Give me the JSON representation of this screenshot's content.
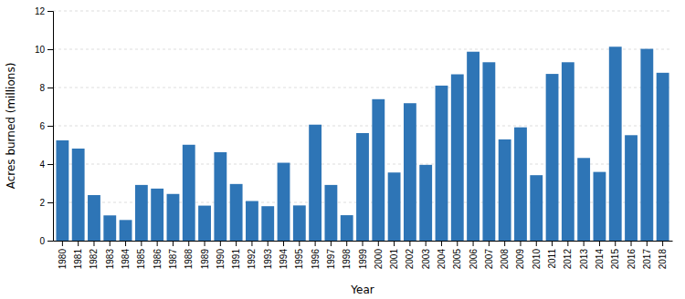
{
  "chart_data": {
    "type": "bar",
    "categories": [
      "1980",
      "1981",
      "1982",
      "1983",
      "1984",
      "1985",
      "1986",
      "1987",
      "1988",
      "1989",
      "1990",
      "1991",
      "1992",
      "1993",
      "1994",
      "1995",
      "1996",
      "1997",
      "1998",
      "1999",
      "2000",
      "2001",
      "2002",
      "2003",
      "2004",
      "2005",
      "2006",
      "2007",
      "2008",
      "2009",
      "2010",
      "2011",
      "2012",
      "2013",
      "2014",
      "2015",
      "2016",
      "2017",
      "2018"
    ],
    "values": [
      5.24,
      4.81,
      2.38,
      1.32,
      1.08,
      2.91,
      2.72,
      2.44,
      5.01,
      1.83,
      4.62,
      2.96,
      2.07,
      1.8,
      4.07,
      1.84,
      6.06,
      2.91,
      1.33,
      5.62,
      7.39,
      3.56,
      7.18,
      3.96,
      8.1,
      8.69,
      9.87,
      9.32,
      5.29,
      5.92,
      3.42,
      8.71,
      9.32,
      4.32,
      3.59,
      10.13,
      5.51,
      10.02,
      8.77
    ],
    "color": "#2e75b6",
    "xlabel": "Year",
    "ylabel": "Acres burned (millions)",
    "ylim": [
      0,
      12
    ],
    "yticks": [
      0,
      2,
      4,
      6,
      8,
      10,
      12
    ],
    "grid": true
  }
}
